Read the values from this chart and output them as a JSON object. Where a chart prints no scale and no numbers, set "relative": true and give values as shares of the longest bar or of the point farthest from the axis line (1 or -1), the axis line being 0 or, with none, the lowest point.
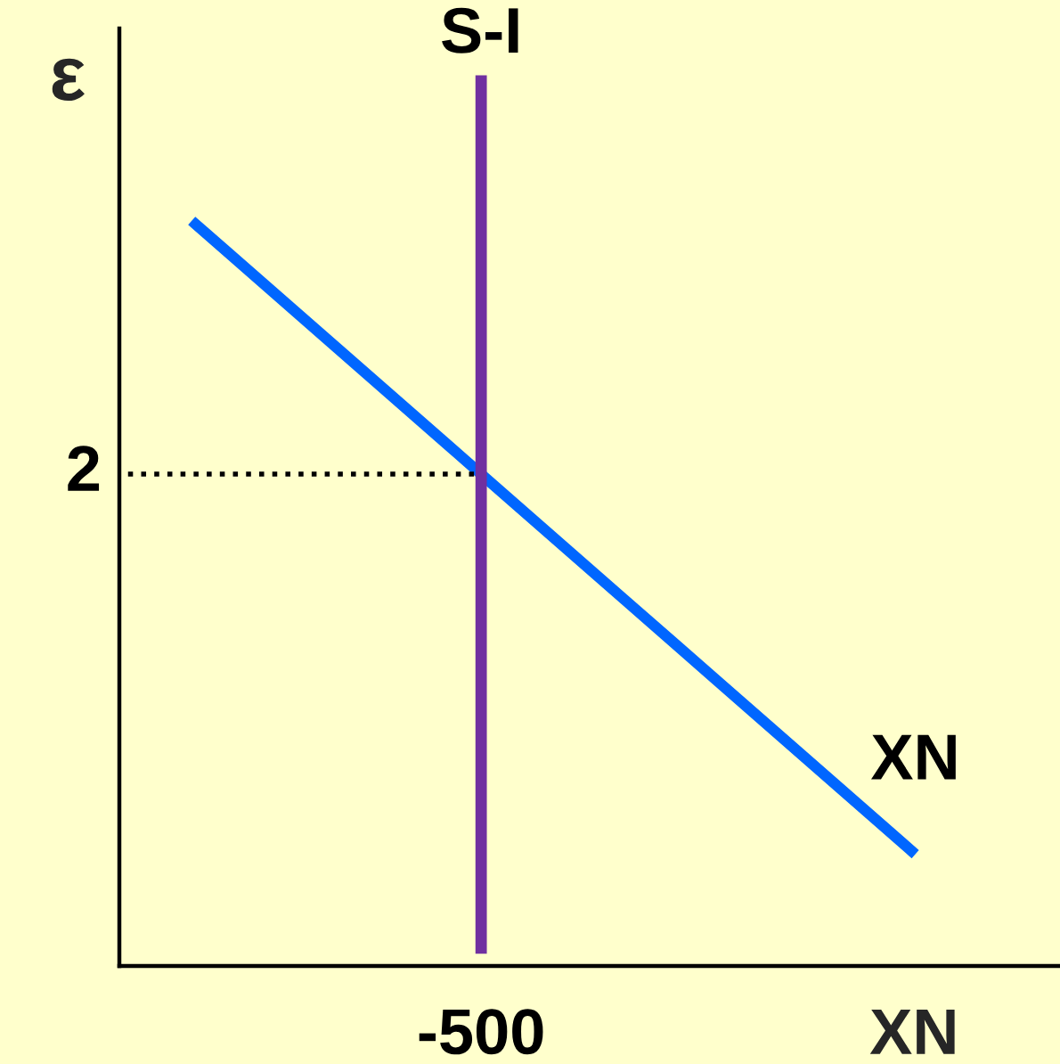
{
  "chart_data": {
    "type": "line",
    "xlabel": "XN",
    "ylabel": "ε",
    "categories": [
      null,
      null,
      null,
      null,
      null,
      null
    ],
    "relative": true,
    "series": [
      {
        "name": "XN",
        "color": "#0066ff",
        "values": [
          1,
          0.83,
          0.66,
          0.49,
          0.32,
          0.15
        ]
      }
    ],
    "ref_lines": [
      {
        "axis": "y",
        "value": 0.66,
        "color": "#000000",
        "line_style": "dotted"
      }
    ],
    "annotations": [
      "2",
      "S-I",
      "-500"
    ]
  }
}
